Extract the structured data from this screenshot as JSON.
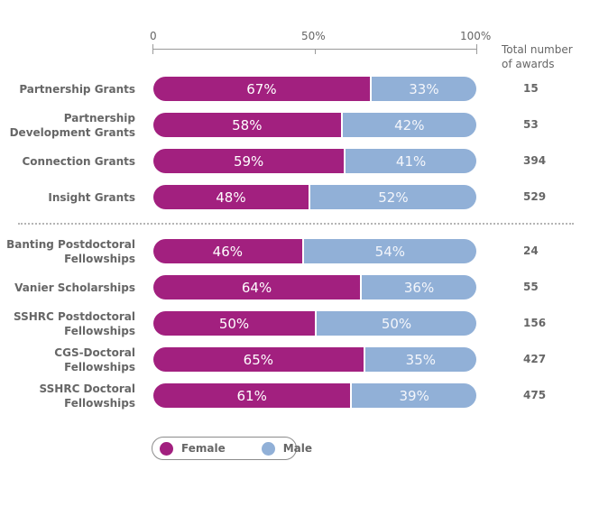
{
  "chart_data": {
    "type": "bar",
    "orientation": "horizontal",
    "stacked": true,
    "normalized_percent": true,
    "xlim": [
      0,
      100
    ],
    "x_ticks": [
      "0",
      "50%",
      "100%"
    ],
    "count_header": [
      "Total number",
      "of awards"
    ],
    "groups": [
      {
        "rows": [
          {
            "label": [
              "Partnership Grants"
            ],
            "female": 67,
            "male": 33,
            "total": 15
          },
          {
            "label": [
              "Partnership",
              "Development Grants"
            ],
            "female": 58,
            "male": 42,
            "total": 53
          },
          {
            "label": [
              "Connection Grants"
            ],
            "female": 59,
            "male": 41,
            "total": 394
          },
          {
            "label": [
              "Insight Grants"
            ],
            "female": 48,
            "male": 52,
            "total": 529
          }
        ]
      },
      {
        "rows": [
          {
            "label": [
              "Banting Postdoctoral",
              "Fellowships"
            ],
            "female": 46,
            "male": 54,
            "total": 24
          },
          {
            "label": [
              "Vanier Scholarships"
            ],
            "female": 64,
            "male": 36,
            "total": 55
          },
          {
            "label": [
              "SSHRC Postdoctoral",
              "Fellowships"
            ],
            "female": 50,
            "male": 50,
            "total": 156
          },
          {
            "label": [
              "CGS-Doctoral",
              "Fellowships"
            ],
            "female": 65,
            "male": 35,
            "total": 427
          },
          {
            "label": [
              "SSHRC Doctoral",
              "Fellowships"
            ],
            "female": 61,
            "male": 39,
            "total": 475
          }
        ]
      }
    ],
    "series": [
      {
        "name": "Female",
        "color": "#A2207F"
      },
      {
        "name": "Male",
        "color": "#91B0D7"
      }
    ],
    "legend": {
      "placement": "bottom-center",
      "items": [
        "Female",
        "Male"
      ]
    },
    "grid": false
  }
}
